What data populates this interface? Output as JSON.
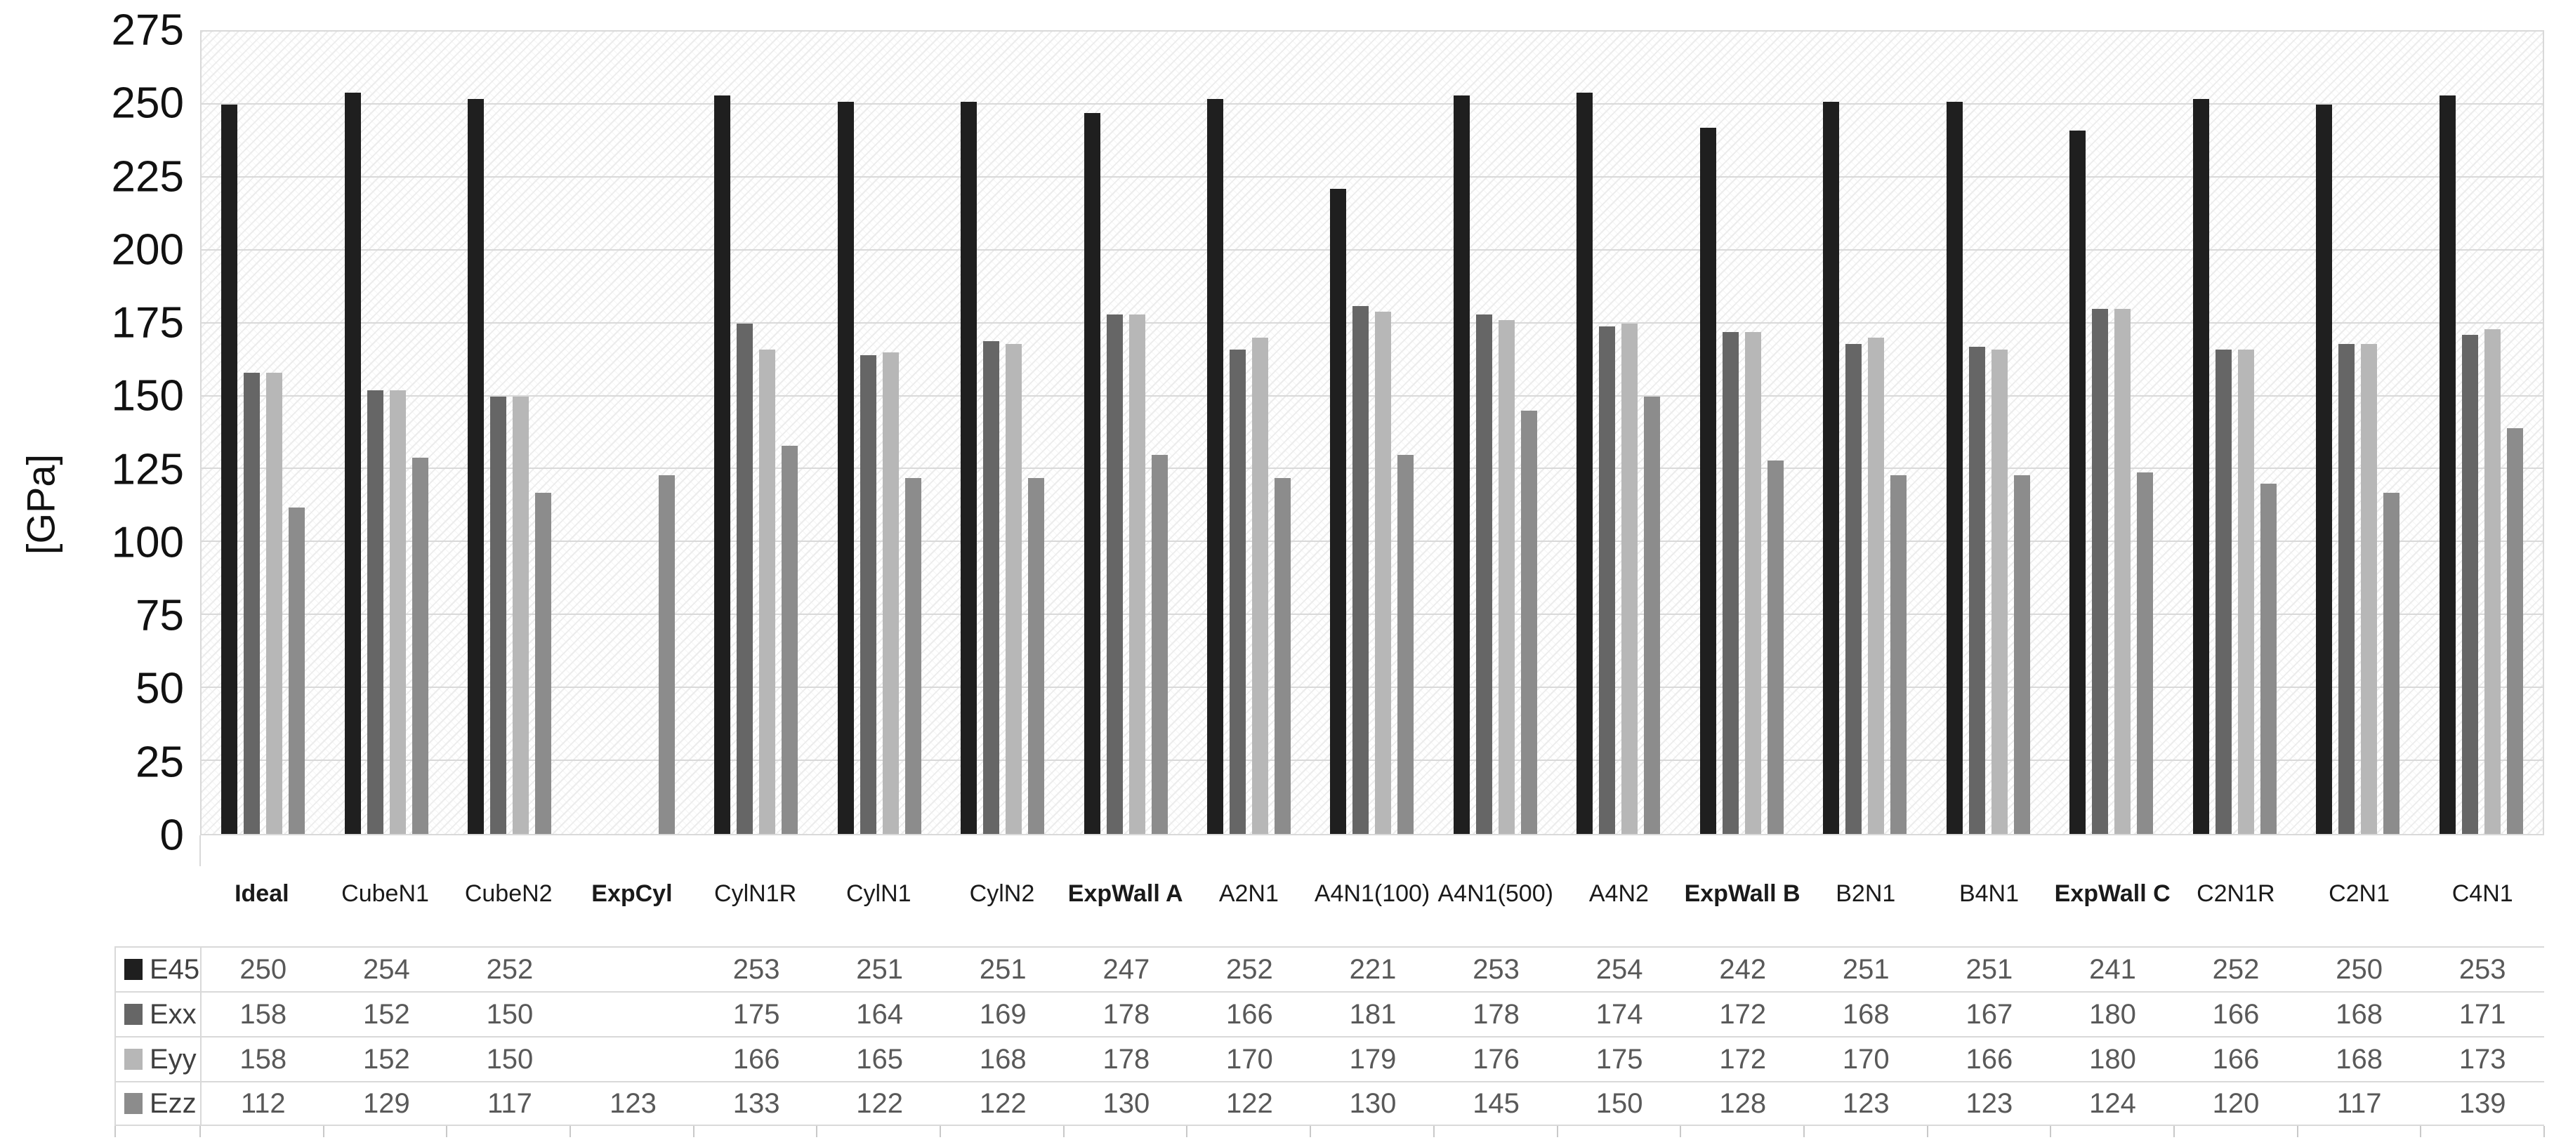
{
  "chart_data": {
    "type": "bar",
    "title": "",
    "ylabel": "[GPa]",
    "ylim": [
      0,
      275
    ],
    "ytick_step": 25,
    "yticks": [
      275,
      250,
      225,
      200,
      175,
      150,
      125,
      100,
      75,
      50,
      25,
      0
    ],
    "grid": "horizontal",
    "plot_background": "light-diagonal-hatch",
    "legend_position": "data-table-left",
    "gridline_color": "#d9d9d9",
    "categories": [
      {
        "label": "Ideal",
        "lines": [
          "Ideal"
        ],
        "bold": true
      },
      {
        "label": "Cube N1",
        "lines": [
          "Cube",
          "N1"
        ],
        "bold": false
      },
      {
        "label": "Cube N2",
        "lines": [
          "Cube",
          "N2"
        ],
        "bold": false
      },
      {
        "label": "Exp Cyl",
        "lines": [
          "Exp",
          "Cyl"
        ],
        "bold": true
      },
      {
        "label": "Cyl N1R",
        "lines": [
          "Cyl",
          "N1R"
        ],
        "bold": false
      },
      {
        "label": "Cyl N1",
        "lines": [
          "Cyl",
          "N1"
        ],
        "bold": false
      },
      {
        "label": "Cyl N2",
        "lines": [
          "Cyl",
          "N2"
        ],
        "bold": false
      },
      {
        "label": "Exp Wall A",
        "lines": [
          "Exp",
          "Wall A"
        ],
        "bold": true
      },
      {
        "label": "A2N1",
        "lines": [
          "A2N1"
        ],
        "bold": false
      },
      {
        "label": "A4N1 (100)",
        "lines": [
          "A4N1",
          "(100)"
        ],
        "bold": false
      },
      {
        "label": "A4N1 (500)",
        "lines": [
          "A4N1",
          "(500)"
        ],
        "bold": false
      },
      {
        "label": "A4N2",
        "lines": [
          "A4N2"
        ],
        "bold": false
      },
      {
        "label": "Exp Wall B",
        "lines": [
          "Exp",
          "Wall B"
        ],
        "bold": true
      },
      {
        "label": "B2N1",
        "lines": [
          "B2N1"
        ],
        "bold": false
      },
      {
        "label": "B4N1",
        "lines": [
          "B4N1"
        ],
        "bold": false
      },
      {
        "label": "Exp Wall C",
        "lines": [
          "Exp",
          "Wall C"
        ],
        "bold": true
      },
      {
        "label": "C2N1R",
        "lines": [
          "C2N1R"
        ],
        "bold": false
      },
      {
        "label": "C2N1",
        "lines": [
          "C2N1"
        ],
        "bold": false
      },
      {
        "label": "C4N1",
        "lines": [
          "C4N1"
        ],
        "bold": false
      }
    ],
    "series": [
      {
        "name": "E45",
        "color": "#1f1f1f",
        "values": [
          250,
          254,
          252,
          null,
          253,
          251,
          251,
          247,
          252,
          221,
          253,
          254,
          242,
          251,
          251,
          241,
          252,
          250,
          253
        ]
      },
      {
        "name": "Exx",
        "color": "#666666",
        "values": [
          158,
          152,
          150,
          null,
          175,
          164,
          169,
          178,
          166,
          181,
          178,
          174,
          172,
          168,
          167,
          180,
          166,
          168,
          171
        ]
      },
      {
        "name": "Eyy",
        "color": "#b7b7b7",
        "values": [
          158,
          152,
          150,
          null,
          166,
          165,
          168,
          178,
          170,
          179,
          176,
          175,
          172,
          170,
          166,
          180,
          166,
          168,
          173
        ]
      },
      {
        "name": "Ezz",
        "color": "#8c8c8c",
        "values": [
          112,
          129,
          117,
          123,
          133,
          122,
          122,
          130,
          122,
          130,
          145,
          150,
          128,
          123,
          123,
          124,
          120,
          117,
          139
        ]
      }
    ]
  }
}
